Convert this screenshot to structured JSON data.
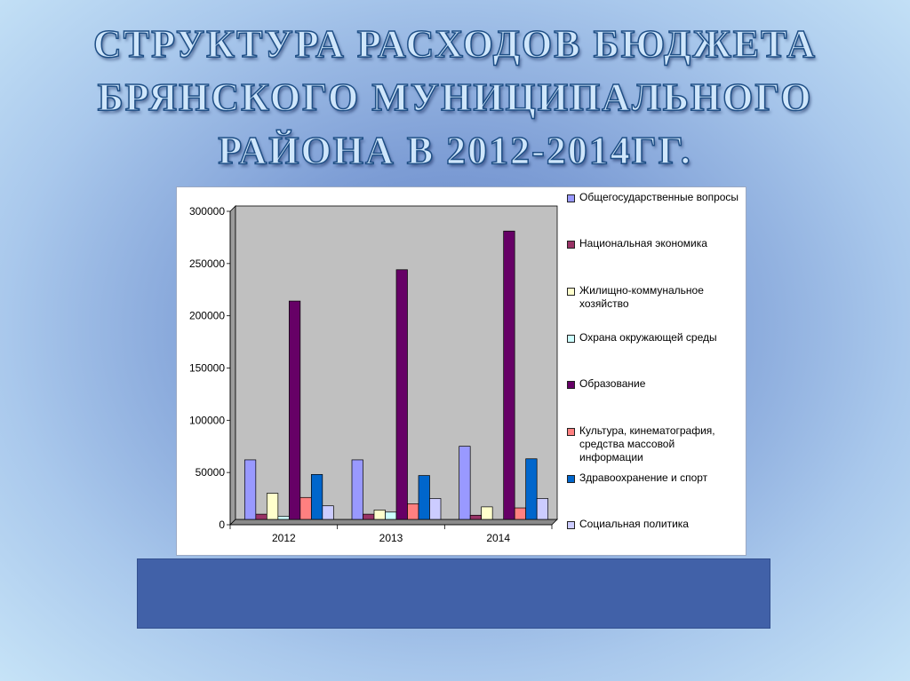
{
  "slide": {
    "title_lines": [
      "СТРУКТУРА РАСХОДОВ БЮДЖЕТА",
      "БРЯНСКОГО МУНИЦИПАЛЬНОГО",
      "РАЙОНА  В 2012-2014ГГ."
    ]
  },
  "chart_data": {
    "type": "bar",
    "categories": [
      "2012",
      "2013",
      "2014"
    ],
    "ylim": [
      0,
      300000
    ],
    "yticks": [
      0,
      50000,
      100000,
      150000,
      200000,
      250000,
      300000
    ],
    "grid": false,
    "legend_position": "right",
    "plot_background": "#c0c0c0",
    "series": [
      {
        "name": "Общегосударственные вопросы",
        "color": "#9999ff",
        "values": [
          57000,
          57000,
          70000
        ]
      },
      {
        "name": "Национальная экономика",
        "color": "#993366",
        "values": [
          5000,
          5000,
          4000
        ]
      },
      {
        "name": "Жилищно-коммунальное хозяйство",
        "color": "#ffffcc",
        "values": [
          25000,
          9000,
          12000
        ]
      },
      {
        "name": "Охрана окружающей среды",
        "color": "#ccffff",
        "values": [
          3000,
          7000,
          0
        ]
      },
      {
        "name": "Образование",
        "color": "#660066",
        "values": [
          209000,
          239000,
          276000
        ]
      },
      {
        "name": "Культура, кинематография, средства массовой информации",
        "color": "#ff8080",
        "values": [
          21000,
          15000,
          11000
        ]
      },
      {
        "name": "Здравоохранение и спорт",
        "color": "#0066cc",
        "values": [
          43000,
          42000,
          58000
        ]
      },
      {
        "name": "Социальная политика",
        "color": "#ccccff",
        "values": [
          13000,
          20000,
          20000
        ]
      }
    ]
  }
}
